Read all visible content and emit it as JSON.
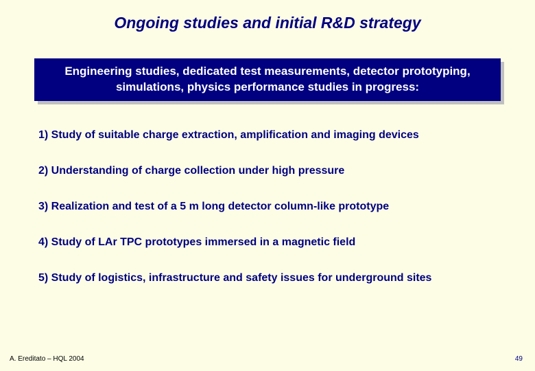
{
  "colors": {
    "slide_bg": "#fdfde6",
    "title_color": "#000080",
    "subtitle_bg": "#000080",
    "subtitle_text": "#ffffff",
    "subtitle_shadow": "#c0c0c0",
    "item_color": "#000080",
    "footer_color": "#000000",
    "pagenum_color": "#000080"
  },
  "fontsize": {
    "title": 23,
    "subtitle": 17,
    "item": 16,
    "footer": 10,
    "pagenum": 10
  },
  "title": "Ongoing studies and initial R&D strategy",
  "subtitle": "Engineering studies, dedicated test measurements, detector prototyping, simulations, physics performance studies in progress:",
  "items": [
    "1) Study of suitable charge extraction, amplification and imaging devices",
    "2) Understanding of charge collection under high pressure",
    "3) Realization and test of a 5 m long detector column-like prototype",
    "4) Study of LAr TPC prototypes immersed in a magnetic field",
    "5) Study of logistics, infrastructure and safety issues for underground sites"
  ],
  "footer_left": "A. Ereditato – HQL 2004",
  "page_number": "49"
}
